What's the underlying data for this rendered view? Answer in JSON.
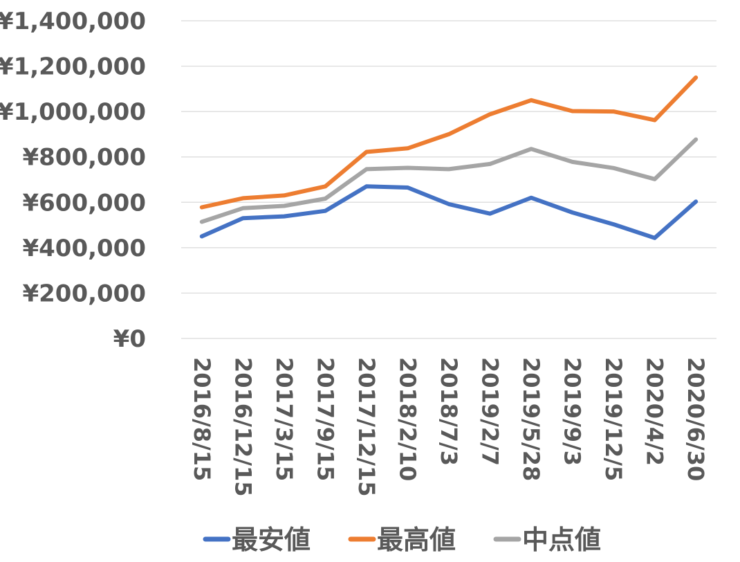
{
  "chart_data": {
    "type": "line",
    "categories": [
      "2016/8/15",
      "2016/12/15",
      "2017/3/15",
      "2017/9/15",
      "2017/12/15",
      "2018/2/10",
      "2018/7/3",
      "2019/2/7",
      "2019/5/28",
      "2019/9/3",
      "2019/12/5",
      "2020/4/2",
      "2020/6/30"
    ],
    "series": [
      {
        "name": "最安値",
        "color": "#4472c4",
        "values": [
          450000,
          530000,
          538000,
          562000,
          670000,
          665000,
          592000,
          550000,
          620000,
          555000,
          503000,
          443000,
          603000
        ]
      },
      {
        "name": "最高値",
        "color": "#ed7d31",
        "values": [
          578000,
          618000,
          630000,
          670000,
          822000,
          838000,
          900000,
          988000,
          1050000,
          1002000,
          1000000,
          962000,
          1150000
        ]
      },
      {
        "name": "中点値",
        "color": "#a5a5a5",
        "values": [
          514000,
          574000,
          584000,
          616000,
          746000,
          752000,
          746000,
          769000,
          835000,
          778000,
          751000,
          702000,
          877000
        ]
      }
    ],
    "y_ticks": [
      "¥0",
      "¥200,000",
      "¥400,000",
      "¥600,000",
      "¥800,000",
      "¥1,000,000",
      "¥1,200,000",
      "¥1,400,000"
    ],
    "ylim": [
      0,
      1400000
    ],
    "y_step": 200000,
    "grid": true,
    "legend": "bottom",
    "title": "",
    "xlabel": "",
    "ylabel": ""
  }
}
